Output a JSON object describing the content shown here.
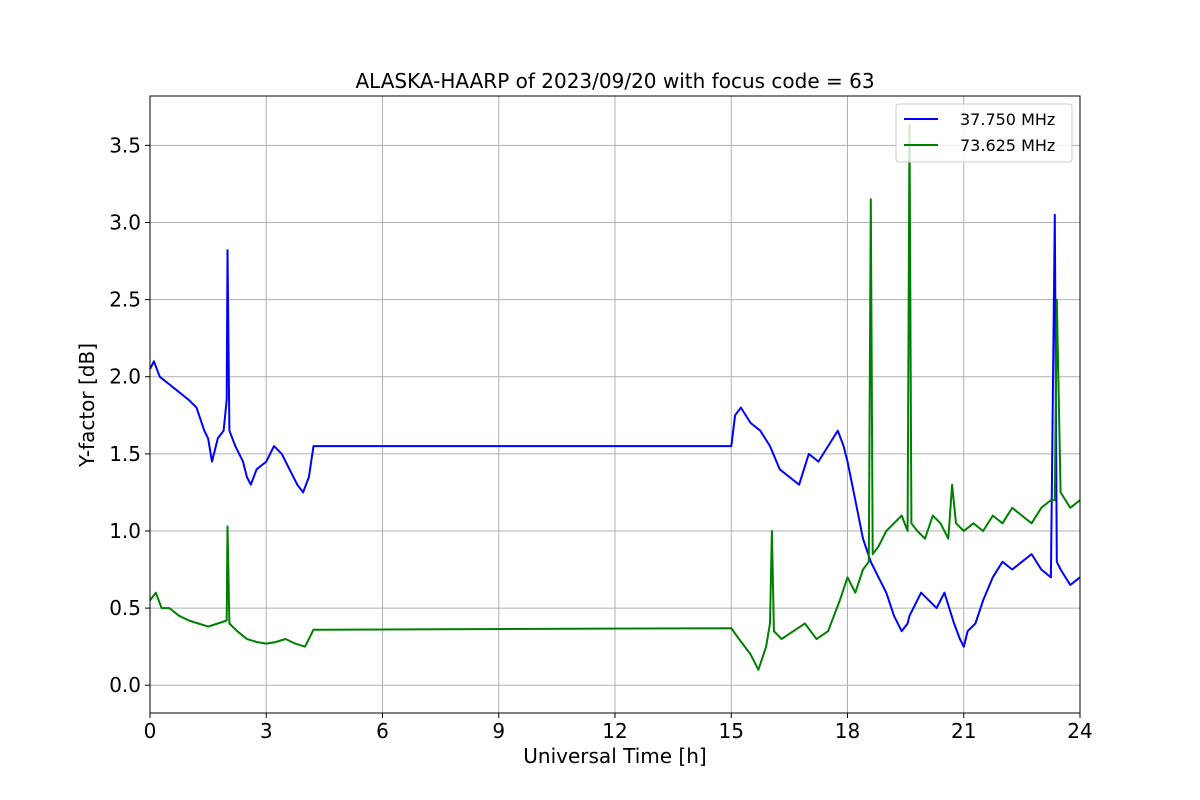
{
  "chart_data": {
    "type": "line",
    "title": "ALASKA-HAARP of 2023/09/20 with focus code = 63",
    "xlabel": "Universal Time [h]",
    "ylabel": "Y-factor [dB]",
    "xlim": [
      0,
      24
    ],
    "ylim": [
      -0.18,
      3.82
    ],
    "xticks": [
      0,
      3,
      6,
      9,
      12,
      15,
      18,
      21,
      24
    ],
    "yticks": [
      0.0,
      0.5,
      1.0,
      1.5,
      2.0,
      2.5,
      3.0,
      3.5
    ],
    "xtick_labels": [
      "0",
      "3",
      "6",
      "9",
      "12",
      "15",
      "18",
      "21",
      "24"
    ],
    "ytick_labels": [
      "0.0",
      "0.5",
      "1.0",
      "1.5",
      "2.0",
      "2.5",
      "3.0",
      "3.5"
    ],
    "grid": true,
    "legend_position": "top-right",
    "series": [
      {
        "name": "37.750 MHz",
        "color": "#0000ff",
        "x": [
          0,
          0.1,
          0.25,
          0.5,
          0.75,
          1.0,
          1.2,
          1.4,
          1.5,
          1.6,
          1.75,
          1.9,
          1.98,
          2.0,
          2.05,
          2.2,
          2.4,
          2.5,
          2.6,
          2.75,
          3.0,
          3.2,
          3.4,
          3.6,
          3.8,
          3.95,
          4.1,
          4.22,
          15.0,
          15.1,
          15.25,
          15.5,
          15.75,
          16.0,
          16.25,
          16.5,
          16.75,
          17.0,
          17.25,
          17.5,
          17.75,
          17.9,
          18.0,
          18.2,
          18.4,
          18.6,
          18.8,
          19.0,
          19.2,
          19.4,
          19.55,
          19.6,
          19.7,
          19.9,
          20.1,
          20.3,
          20.5,
          20.75,
          20.9,
          21.0,
          21.1,
          21.3,
          21.5,
          21.75,
          22.0,
          22.25,
          22.5,
          22.75,
          23.0,
          23.25,
          23.35,
          23.4,
          23.5,
          23.75,
          24.0
        ],
        "y": [
          2.05,
          2.1,
          2.0,
          1.95,
          1.9,
          1.85,
          1.8,
          1.65,
          1.6,
          1.45,
          1.6,
          1.65,
          1.85,
          2.82,
          1.65,
          1.55,
          1.45,
          1.35,
          1.3,
          1.4,
          1.45,
          1.55,
          1.5,
          1.4,
          1.3,
          1.25,
          1.35,
          1.55,
          1.55,
          1.75,
          1.8,
          1.7,
          1.65,
          1.55,
          1.4,
          1.35,
          1.3,
          1.5,
          1.45,
          1.55,
          1.65,
          1.55,
          1.45,
          1.2,
          0.95,
          0.8,
          0.7,
          0.6,
          0.45,
          0.35,
          0.4,
          0.45,
          0.5,
          0.6,
          0.55,
          0.5,
          0.6,
          0.4,
          0.3,
          0.25,
          0.35,
          0.4,
          0.55,
          0.7,
          0.8,
          0.75,
          0.8,
          0.85,
          0.75,
          0.7,
          3.05,
          0.8,
          0.75,
          0.65,
          0.7
        ]
      },
      {
        "name": "73.625 MHz",
        "color": "#008000",
        "x": [
          0,
          0.15,
          0.3,
          0.5,
          0.75,
          1.0,
          1.25,
          1.5,
          1.75,
          1.98,
          2.0,
          2.05,
          2.25,
          2.5,
          2.75,
          3.0,
          3.25,
          3.5,
          3.75,
          4.0,
          4.22,
          15.0,
          15.2,
          15.5,
          15.7,
          15.9,
          16.0,
          16.05,
          16.1,
          16.3,
          16.6,
          16.9,
          17.2,
          17.5,
          17.8,
          18.0,
          18.2,
          18.4,
          18.55,
          18.6,
          18.65,
          18.8,
          19.0,
          19.2,
          19.4,
          19.55,
          19.6,
          19.65,
          19.8,
          20.0,
          20.2,
          20.4,
          20.6,
          20.7,
          20.8,
          21.0,
          21.25,
          21.5,
          21.75,
          22.0,
          22.25,
          22.5,
          22.75,
          23.0,
          23.25,
          23.35,
          23.4,
          23.5,
          23.75,
          24.0
        ],
        "y": [
          0.55,
          0.6,
          0.5,
          0.5,
          0.45,
          0.42,
          0.4,
          0.38,
          0.4,
          0.42,
          1.03,
          0.4,
          0.35,
          0.3,
          0.28,
          0.27,
          0.28,
          0.3,
          0.27,
          0.25,
          0.36,
          0.37,
          0.3,
          0.2,
          0.1,
          0.25,
          0.4,
          1.0,
          0.35,
          0.3,
          0.35,
          0.4,
          0.3,
          0.35,
          0.55,
          0.7,
          0.6,
          0.75,
          0.8,
          3.15,
          0.85,
          0.9,
          1.0,
          1.05,
          1.1,
          1.0,
          3.63,
          1.05,
          1.0,
          0.95,
          1.1,
          1.05,
          0.95,
          1.3,
          1.05,
          1.0,
          1.05,
          1.0,
          1.1,
          1.05,
          1.15,
          1.1,
          1.05,
          1.15,
          1.2,
          1.2,
          2.5,
          1.25,
          1.15,
          1.2
        ]
      }
    ]
  }
}
